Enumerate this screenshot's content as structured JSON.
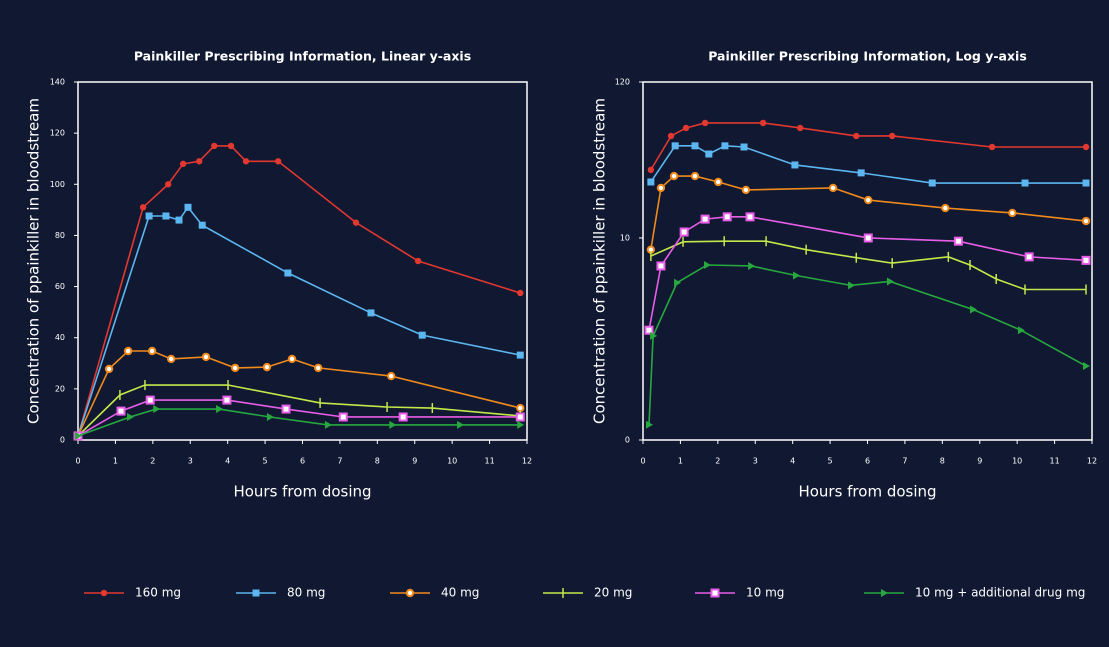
{
  "chart_data": [
    {
      "type": "line",
      "title": "Painkiller Prescribing Information, Linear y-axis",
      "xlabel": "Hours from dosing",
      "ylabel": "Concentration of ppainkiller in bloodstream",
      "xlim": [
        0,
        12
      ],
      "ylim": [
        0,
        140
      ],
      "xticks": [
        0,
        1,
        2,
        3,
        4,
        5,
        6,
        7,
        8,
        9,
        10,
        11,
        12
      ],
      "yticks": [
        0,
        20,
        40,
        60,
        80,
        100,
        120,
        140
      ],
      "yscale": "linear",
      "series": [
        {
          "name": "160 mg",
          "color": "#e2382f",
          "marker": "circle",
          "x": [
            0,
            1.74,
            2.41,
            2.81,
            3.24,
            3.64,
            4.09,
            4.49,
            5.35,
            7.43,
            9.09,
            11.82
          ],
          "values": [
            1.6,
            91,
            100,
            108,
            109,
            115,
            115,
            109,
            109,
            85,
            70,
            57.5
          ]
        },
        {
          "name": "80 mg",
          "color": "#5cb6ef",
          "marker": "square",
          "x": [
            0,
            1.9,
            2.35,
            2.7,
            2.94,
            3.32,
            5.61,
            7.83,
            9.2,
            11.82
          ],
          "values": [
            1.6,
            87.6,
            87.6,
            86,
            91,
            84,
            65.3,
            49.7,
            41,
            33.2
          ]
        },
        {
          "name": "40 mg",
          "color": "#f08a1c",
          "marker": "open-circle",
          "x": [
            0,
            0.83,
            1.34,
            1.98,
            2.49,
            3.42,
            4.2,
            5.05,
            5.72,
            6.42,
            8.37,
            11.82
          ],
          "values": [
            1.6,
            27.8,
            34.8,
            34.8,
            31.7,
            32.5,
            28.2,
            28.5,
            31.7,
            28.2,
            25,
            12.5
          ]
        },
        {
          "name": "20 mg",
          "color": "#c4e84a",
          "marker": "tick",
          "x": [
            0,
            1.12,
            1.79,
            4.01,
            6.47,
            8.26,
            9.47,
            11.82
          ],
          "values": [
            1.6,
            17.6,
            21.5,
            21.5,
            14.5,
            12.9,
            12.5,
            9.4
          ]
        },
        {
          "name": "10 mg",
          "color": "#e85ee8",
          "marker": "open-square",
          "x": [
            0,
            1.15,
            1.93,
            3.98,
            5.56,
            7.09,
            8.69,
            11.82
          ],
          "values": [
            1.6,
            11.3,
            15.6,
            15.6,
            12.1,
            9,
            9,
            9
          ]
        },
        {
          "name": "10 mg + additional drug mg",
          "color": "#27a83f",
          "marker": "triangle",
          "x": [
            0,
            1.39,
            2.09,
            3.77,
            5.13,
            6.68,
            8.4,
            10.21,
            11.82
          ],
          "values": [
            1.6,
            9,
            12.1,
            12.1,
            9,
            5.9,
            5.9,
            5.9,
            5.9
          ]
        }
      ]
    },
    {
      "type": "line",
      "title": "Painkiller Prescribing Information, Log y-axis",
      "xlabel": "Hours from dosing",
      "ylabel": "Concentration of ppainkiller in bloodstream",
      "xlim": [
        0,
        12
      ],
      "ylim": [
        0.4,
        120
      ],
      "xticks": [
        0,
        1,
        2,
        3,
        4,
        5,
        6,
        7,
        8,
        9,
        10,
        11,
        12
      ],
      "yticks": [
        {
          "value": 0.4,
          "label": "0"
        },
        10,
        120
      ],
      "yscale": "log",
      "series": [
        {
          "color": "#e2382f",
          "marker": "circle",
          "x": [
            0.21,
            0.75,
            1.15,
            1.66,
            3.21,
            4.2,
            5.7,
            6.66,
            9.33,
            11.84
          ],
          "values": [
            29.6,
            50.8,
            57.7,
            62.5,
            62.5,
            57.7,
            50.8,
            50.8,
            42.6,
            42.6
          ]
        },
        {
          "color": "#5cb6ef",
          "marker": "square",
          "x": [
            0.21,
            0.86,
            1.39,
            1.76,
            2.19,
            2.7,
            4.06,
            5.83,
            7.73,
            10.21,
            11.84
          ],
          "values": [
            24.4,
            43.4,
            43.4,
            38.1,
            43.4,
            42.6,
            32,
            28.2,
            24,
            24,
            24
          ]
        },
        {
          "color": "#f08a1c",
          "marker": "open-circle",
          "x": [
            0.21,
            0.48,
            0.83,
            1.39,
            2.01,
            2.75,
            5.08,
            6.02,
            8.08,
            9.87,
            11.84
          ],
          "values": [
            8.3,
            22.2,
            26.8,
            26.8,
            24.4,
            21.5,
            22.2,
            18.3,
            16.1,
            14.9,
            13.1
          ]
        },
        {
          "color": "#c4e84a",
          "marker": "tick",
          "x": [
            0.21,
            1.07,
            2.17,
            3.29,
            4.36,
            5.7,
            6.66,
            8.16,
            8.74,
            9.44,
            10.21,
            11.84
          ],
          "values": [
            7.5,
            9.4,
            9.5,
            9.5,
            8.3,
            7.3,
            6.7,
            7.4,
            6.5,
            5.2,
            4.4,
            4.4
          ]
        },
        {
          "color": "#e85ee8",
          "marker": "open-square",
          "x": [
            0.16,
            0.48,
            1.1,
            1.66,
            2.25,
            2.86,
            6.02,
            8.43,
            10.32,
            11.84
          ],
          "values": [
            2.3,
            6.4,
            11,
            13.5,
            14,
            14,
            10,
            9.5,
            7.4,
            7
          ]
        },
        {
          "color": "#27a83f",
          "marker": "triangle",
          "x": [
            0.16,
            0.27,
            0.91,
            1.71,
            2.89,
            4.09,
            5.56,
            6.6,
            8.82,
            10.1,
            11.84
          ],
          "values": [
            0.51,
            2.1,
            4.9,
            6.5,
            6.4,
            5.5,
            4.7,
            5,
            3.2,
            2.3,
            1.3
          ]
        }
      ]
    }
  ]
}
